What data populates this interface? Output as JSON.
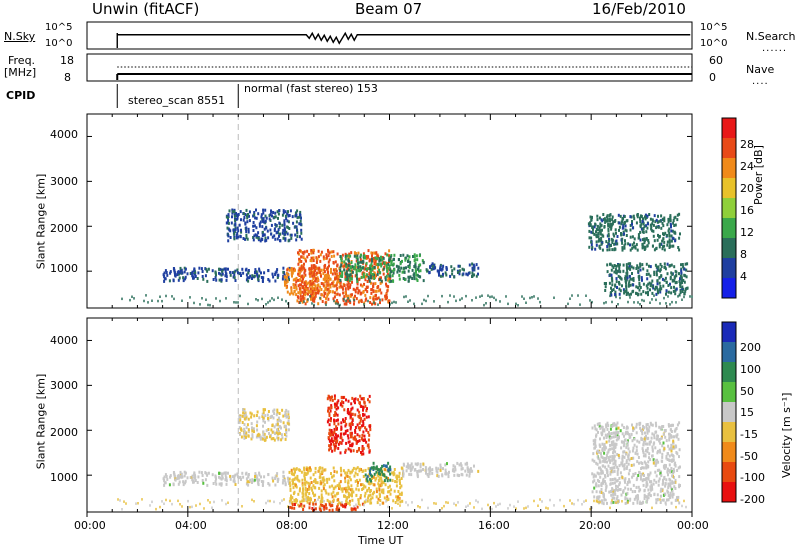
{
  "header": {
    "station": "Unwin (fitACF)",
    "beam": "Beam 07",
    "date": "16/Feb/2010"
  },
  "strip": {
    "nsky_label": "N.Sky",
    "nsky_ticks": [
      "10^5",
      "10^0"
    ],
    "nsearch_label": "N.Search",
    "nsearch_ticks": [
      "10^5",
      "10^0"
    ],
    "freq_label": "Freq.",
    "freq_unit": "[MHz]",
    "freq_ticks": [
      "18",
      "8"
    ],
    "nave_label": "Nave",
    "nave_ticks": [
      "60",
      "0"
    ],
    "cpid_label": "CPID",
    "modes": [
      {
        "name": "stereo_scan 8551",
        "start_hour": 1.2
      },
      {
        "name": "normal (fast stereo) 153",
        "start_hour": 6.0
      }
    ]
  },
  "axes": {
    "ylabel": "Slant Range [km]",
    "xlabel": "Time UT",
    "yticks": [
      "1000",
      "2000",
      "3000",
      "4000"
    ],
    "xticks": [
      "00:00",
      "04:00",
      "08:00",
      "12:00",
      "16:00",
      "20:00",
      "00:00"
    ]
  },
  "power_cbar": {
    "label": "Power [dB]",
    "ticks": [
      "4",
      "8",
      "12",
      "16",
      "20",
      "24",
      "28"
    ],
    "colors": [
      "#1520e8",
      "#1f3fa0",
      "#2a6e5a",
      "#3aa84a",
      "#8fcf3a",
      "#e8c22a",
      "#f08a1a",
      "#e84a18",
      "#e81818"
    ]
  },
  "velocity_cbar": {
    "label": "Velocity [m s⁻¹]",
    "ticks": [
      "200",
      "100",
      "50",
      "15",
      "-15",
      "-50",
      "-100",
      "-200"
    ],
    "colors": [
      "#1a2ab8",
      "#2a6aa0",
      "#2e8a50",
      "#58c040",
      "#c8c8c8",
      "#e8c040",
      "#f08a1a",
      "#e84a10",
      "#e81010"
    ]
  },
  "chart_data": [
    {
      "type": "heatmap",
      "title": "Power",
      "xlabel": "Time UT",
      "ylabel": "Slant Range [km]",
      "xlim": [
        0,
        24
      ],
      "ylim": [
        180,
        4500
      ],
      "colorbar_label": "Power [dB]",
      "colorbar_range": [
        0,
        30
      ],
      "regions": [
        {
          "t": [
            3.0,
            8.0
          ],
          "r": [
            800,
            1100
          ],
          "level": 6
        },
        {
          "t": [
            5.5,
            8.5
          ],
          "r": [
            1700,
            2400
          ],
          "level": 6
        },
        {
          "t": [
            7.8,
            10.0
          ],
          "r": [
            500,
            1100
          ],
          "level": 22
        },
        {
          "t": [
            8.3,
            12.0
          ],
          "r": [
            300,
            1500
          ],
          "level": 24
        },
        {
          "t": [
            10.0,
            13.5
          ],
          "r": [
            800,
            1400
          ],
          "level": 10
        },
        {
          "t": [
            13.5,
            15.5
          ],
          "r": [
            900,
            1200
          ],
          "level": 6
        },
        {
          "t": [
            19.8,
            23.5
          ],
          "r": [
            1500,
            2300
          ],
          "level": 8
        },
        {
          "t": [
            20.5,
            23.8
          ],
          "r": [
            500,
            1200
          ],
          "level": 8
        }
      ]
    },
    {
      "type": "heatmap",
      "title": "Velocity",
      "xlabel": "Time UT",
      "ylabel": "Slant Range [km]",
      "xlim": [
        0,
        24
      ],
      "ylim": [
        180,
        4500
      ],
      "colorbar_label": "Velocity [m s⁻¹]",
      "colorbar_range": [
        -250,
        250
      ],
      "regions": [
        {
          "t": [
            3.0,
            8.0
          ],
          "r": [
            800,
            1100
          ],
          "level": 0
        },
        {
          "t": [
            6.0,
            8.0
          ],
          "r": [
            1800,
            2500
          ],
          "level": -30
        },
        {
          "t": [
            8.0,
            12.5
          ],
          "r": [
            400,
            1200
          ],
          "level": -60
        },
        {
          "t": [
            8.0,
            11.0
          ],
          "r": [
            250,
            400
          ],
          "level": -180
        },
        {
          "t": [
            9.5,
            11.2
          ],
          "r": [
            1500,
            2800
          ],
          "level": -200
        },
        {
          "t": [
            11.0,
            12.0
          ],
          "r": [
            900,
            1300
          ],
          "level": 120
        },
        {
          "t": [
            12.5,
            15.5
          ],
          "r": [
            1000,
            1300
          ],
          "level": 0
        },
        {
          "t": [
            20.0,
            23.5
          ],
          "r": [
            400,
            2200
          ],
          "level": 0
        }
      ]
    }
  ]
}
